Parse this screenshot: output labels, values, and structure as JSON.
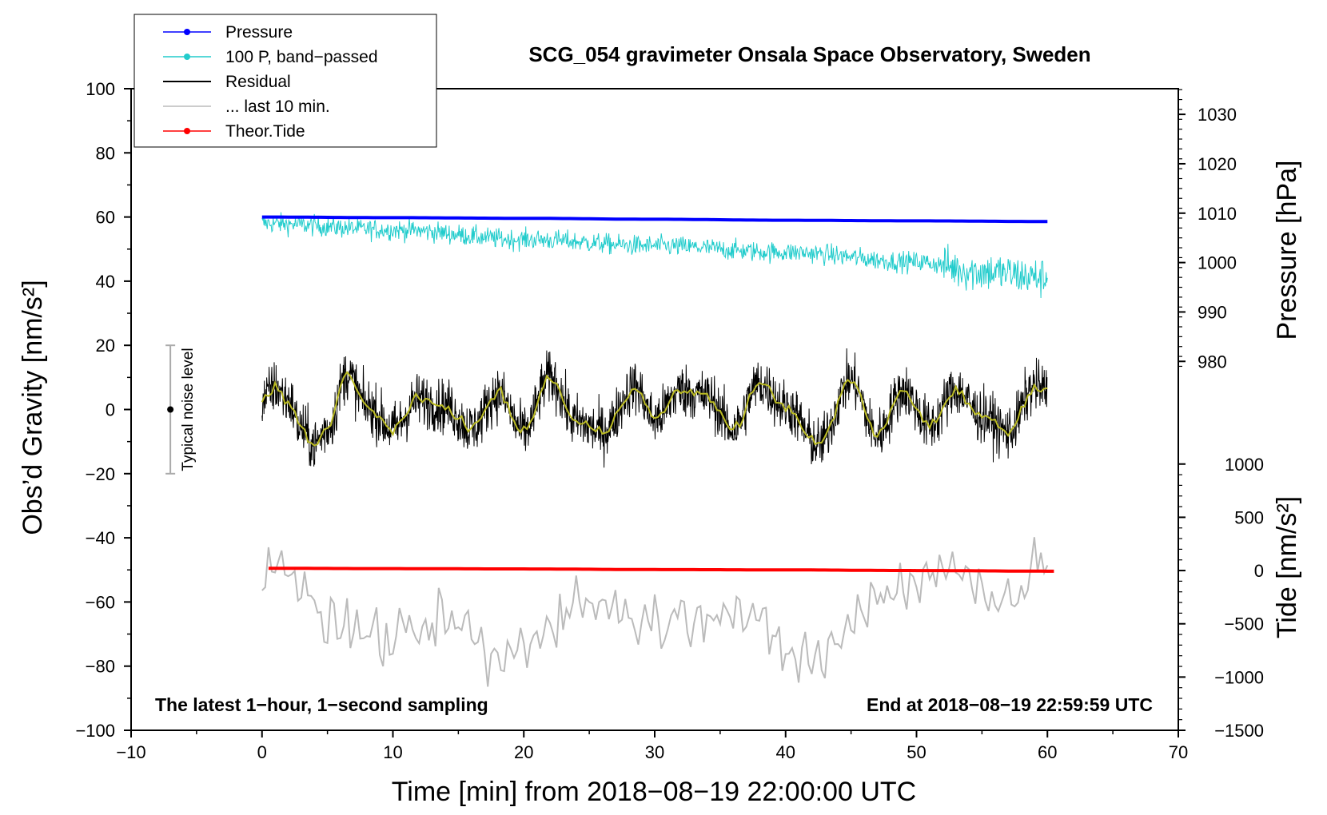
{
  "chart_data": {
    "type": "line",
    "title": "SCG_054 gravimeter Onsala Space Observatory, Sweden",
    "xlabel": "Time [min] from 2018−08−19 22:00:00 UTC",
    "ylabel_left": "Obs’d Gravity [nm/s²]",
    "ylabel_right_top": "Pressure [hPa]",
    "ylabel_right_bottom": "Tide [nm/s²]",
    "xlim": [
      -10,
      70
    ],
    "ylim": [
      -100,
      100
    ],
    "x_ticks": [
      -10,
      0,
      10,
      20,
      30,
      40,
      50,
      60,
      70
    ],
    "x_tick_labels": [
      "−10",
      "0",
      "10",
      "20",
      "30",
      "40",
      "50",
      "60",
      "70"
    ],
    "y_ticks": [
      -100,
      -80,
      -60,
      -40,
      -20,
      0,
      20,
      40,
      60,
      80,
      100
    ],
    "y_tick_labels": [
      "−100",
      "−80",
      "−60",
      "−40",
      "−20",
      "0",
      "20",
      "40",
      "60",
      "80",
      "100"
    ],
    "pressure_axis": {
      "ticks": [
        980,
        990,
        1000,
        1010,
        1020,
        1030
      ],
      "tick_labels": [
        "980",
        "990",
        "1000",
        "1010",
        "1020",
        "1030"
      ],
      "map_hpa": [
        980,
        1030
      ],
      "map_gravity": [
        15,
        92
      ]
    },
    "tide_axis": {
      "ticks": [
        -1500,
        -1000,
        -500,
        0,
        500,
        1000
      ],
      "tick_labels": [
        "−1500",
        "−1000",
        "−500",
        "0",
        "500",
        "1000"
      ],
      "map_tide": [
        -1500,
        1000
      ],
      "map_gravity": [
        -100,
        -17
      ]
    },
    "legend": [
      {
        "label": "Pressure",
        "color": "#0000ff",
        "marker": true
      },
      {
        "label": "100 P, band−passed",
        "color": "#22cccc",
        "marker": true
      },
      {
        "label": "Residual",
        "color": "#000000",
        "marker": false
      },
      {
        "label": "... last 10 min.",
        "color": "#bbbbbb",
        "marker": false
      },
      {
        "label": "Theor.Tide",
        "color": "#ff0000",
        "marker": true
      }
    ],
    "series": [
      {
        "name": "Pressure",
        "color": "#0000ff",
        "x": [
          0,
          10,
          20,
          30,
          40,
          50,
          60
        ],
        "y": [
          60.0,
          59.8,
          59.6,
          59.3,
          59.0,
          58.8,
          58.6
        ]
      },
      {
        "name": "100 P, band−passed",
        "color": "#22cccc",
        "x": [
          0,
          10,
          20,
          30,
          40,
          50,
          55,
          60
        ],
        "y": [
          58,
          56,
          53,
          51,
          49,
          46,
          43,
          41
        ]
      },
      {
        "name": "Residual",
        "color": "#000000",
        "x": [
          0,
          1,
          2,
          3,
          4,
          5,
          6.5,
          8,
          10,
          12,
          14,
          16,
          18,
          20,
          22,
          24,
          26,
          28.5,
          30,
          32,
          34,
          36,
          38,
          40,
          42.5,
          45,
          47,
          49,
          51,
          53,
          55,
          57,
          59,
          60
        ],
        "y": [
          3,
          7,
          3,
          -6,
          -11,
          -6,
          11,
          1,
          -6,
          3,
          1,
          -6,
          5,
          -7,
          10,
          -4,
          -7,
          7,
          -3,
          6,
          4,
          -6,
          8,
          1,
          -11,
          9,
          -8,
          6,
          -5,
          6,
          -2,
          -7,
          7,
          6
        ]
      },
      {
        "name": "... last 10 min.",
        "color": "#bbbbbb",
        "x": [
          0,
          0.8,
          5,
          10,
          15,
          17.5,
          25,
          30,
          35,
          42,
          48,
          52,
          57,
          60
        ],
        "y": [
          -60,
          -44,
          -66,
          -72,
          -66,
          -78,
          -60,
          -66,
          -62,
          -78,
          -56,
          -50,
          -58,
          -48
        ]
      },
      {
        "name": "Theor.Tide",
        "color": "#ff0000",
        "x": [
          0.5,
          10,
          20,
          30,
          40,
          50,
          60.5
        ],
        "y": [
          -49.5,
          -49.6,
          -49.7,
          -49.9,
          -50.0,
          -50.2,
          -50.4
        ]
      }
    ],
    "yellow_smoothed_residual": {
      "color": "#bbbb22"
    },
    "noise_bar": {
      "label": "Typical noise level",
      "center": 0,
      "half_range": 20,
      "x": -7
    }
  },
  "annotations": {
    "bottom_left": "The latest 1−hour, 1−second sampling",
    "bottom_right": "End at 2018−08−19 22:59:59 UTC"
  }
}
